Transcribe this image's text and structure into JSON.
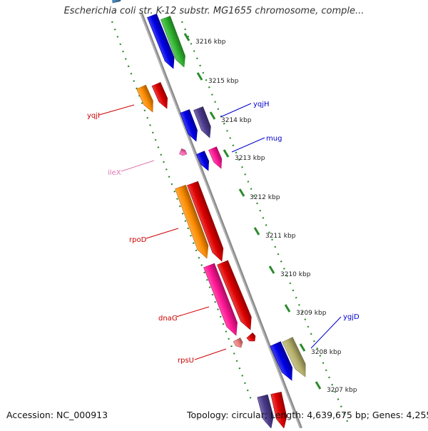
{
  "title": "Escherichia coli str. K-12 substr. MG1655 chromosome, comple...",
  "footer": {
    "accession": "Accession: NC_000913",
    "summary": "Topology: circular; Length: 4,639,675 bp; Genes: 4,255"
  },
  "colors": {
    "backbone": "#8c8c8c",
    "dotted_track": "#2a8a2a",
    "ticks": [
      "#2a8a2a"
    ]
  },
  "scale": {
    "ticks": [
      {
        "label": "3216 kbp"
      },
      {
        "label": "3215 kbp"
      },
      {
        "label": "3214 kbp"
      },
      {
        "label": "3213 kbp"
      },
      {
        "label": "3212 kbp"
      },
      {
        "label": "3211 kbp"
      },
      {
        "label": "3210 kbp"
      },
      {
        "label": "3209 kbp"
      },
      {
        "label": "3208 kbp"
      },
      {
        "label": "3207 kbp"
      }
    ]
  },
  "labels": [
    {
      "name": "yqjI",
      "color": "#cc0000"
    },
    {
      "name": "yqjH",
      "color": "#0000cc"
    },
    {
      "name": "mug",
      "color": "#0000cc"
    },
    {
      "name": "ileX",
      "color": "#e078b0"
    },
    {
      "name": "rpoD",
      "color": "#cc0000"
    },
    {
      "name": "dnaG",
      "color": "#cc0000"
    },
    {
      "name": "rpsU",
      "color": "#cc0000"
    },
    {
      "name": "ygjD",
      "color": "#0000cc"
    }
  ],
  "features": [
    {
      "color": "#4a8ac0"
    },
    {
      "color": "#0000e8"
    },
    {
      "color": "#2fb52f"
    },
    {
      "color": "#ff8c00"
    },
    {
      "color": "#e00000"
    },
    {
      "color": "#0000e8"
    },
    {
      "color": "#4b3a8c"
    },
    {
      "color": "#0000e8"
    },
    {
      "color": "#ff1493"
    },
    {
      "color": "#ff69b4"
    },
    {
      "color": "#ff8c00"
    },
    {
      "color": "#e00000"
    },
    {
      "color": "#ff1493"
    },
    {
      "color": "#e00000"
    },
    {
      "color": "#f08080"
    },
    {
      "color": "#e00000"
    },
    {
      "color": "#0000e8"
    },
    {
      "color": "#b5b06a"
    },
    {
      "color": "#4b3a8c"
    },
    {
      "color": "#e00000"
    }
  ]
}
